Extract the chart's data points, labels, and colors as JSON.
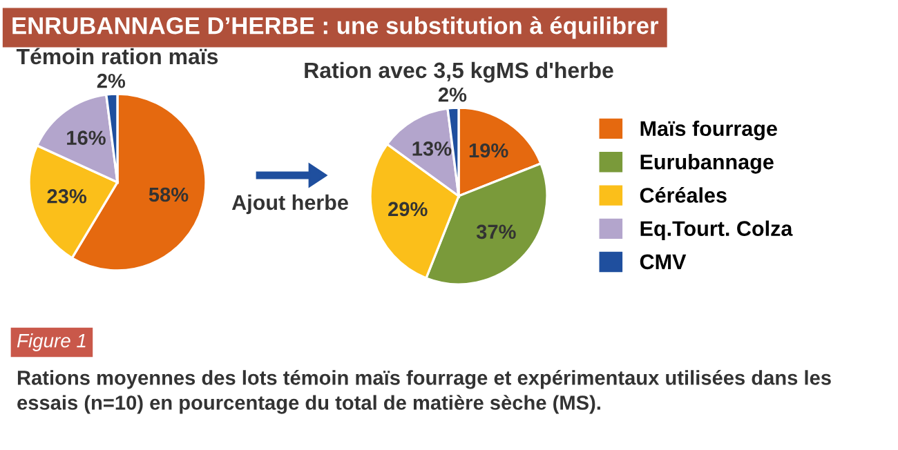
{
  "chart_data": {
    "type": "pie",
    "categories": [
      "Maïs fourrage",
      "Eurubannage",
      "Céréales",
      "Eq.Tourt. Colza",
      "CMV"
    ],
    "colors": [
      "#e5690f",
      "#7a9a3a",
      "#fbbf1a",
      "#b3a5cc",
      "#1f4f9e"
    ],
    "legend": "right",
    "series": [
      {
        "name": "Témoin ration maïs",
        "values": [
          58,
          null,
          23,
          16,
          2
        ],
        "value_labels": [
          "58%",
          null,
          "23%",
          "16%",
          "2%"
        ]
      },
      {
        "name": "Ration avec 3,5 kgMS d'herbe",
        "values": [
          19,
          37,
          29,
          13,
          2
        ],
        "value_labels": [
          "19%",
          "37%",
          "29%",
          "13%",
          "2%"
        ]
      }
    ],
    "annotations": [
      "ENRUBANNAGE D’HERBE : une substitution à équilibrer",
      "Ajout herbe",
      "Figure 1",
      "Rations moyennes des lots témoin maïs fourrage et expérimentaux utilisées dans les essais (n=10) en pourcentage du total de matière sèche (MS)."
    ]
  }
}
